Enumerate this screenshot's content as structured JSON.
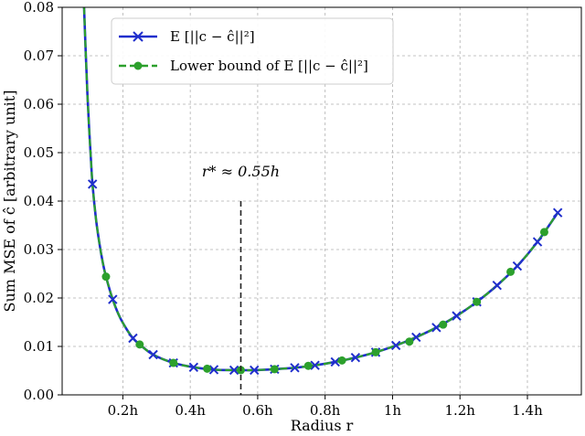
{
  "chart_data": {
    "type": "line",
    "xlabel": "Radius r",
    "ylabel": "Sum MSE of ĉ [arbitrary unit]",
    "xlim": [
      0.02,
      1.56
    ],
    "ylim": [
      0,
      0.08
    ],
    "grid": true,
    "legend_placement": "top-left",
    "x_ticks": [
      0.2,
      0.4,
      0.6,
      0.8,
      1.0,
      1.2,
      1.4
    ],
    "x_tick_labels": [
      "0.2h",
      "0.4h",
      "0.6h",
      "0.8h",
      "1h",
      "1.2h",
      "1.4h"
    ],
    "y_ticks": [
      0,
      0.01,
      0.02,
      0.03,
      0.04,
      0.05,
      0.06,
      0.07,
      0.08
    ],
    "y_tick_labels": [
      "0.00",
      "0.01",
      "0.02",
      "0.03",
      "0.04",
      "0.05",
      "0.06",
      "0.07",
      "0.08"
    ],
    "annotation": {
      "text": "r* ≈ 0.55h",
      "x": 0.55,
      "y_top": 0.04
    },
    "series": [
      {
        "name": "E [||c − ĉ||²]",
        "color": "#1f2ecc",
        "style": "solid",
        "marker": "x",
        "x": [
          0.11,
          0.17,
          0.23,
          0.29,
          0.35,
          0.41,
          0.47,
          0.53,
          0.59,
          0.65,
          0.71,
          0.77,
          0.83,
          0.89,
          0.95,
          1.01,
          1.07,
          1.13,
          1.19,
          1.25,
          1.31,
          1.37,
          1.43,
          1.49
        ],
        "values": [
          0.0435,
          0.0197,
          0.0117,
          0.0083,
          0.0066,
          0.0057,
          0.0052,
          0.0051,
          0.0051,
          0.0053,
          0.0056,
          0.0061,
          0.0068,
          0.0077,
          0.0088,
          0.0102,
          0.0119,
          0.0139,
          0.0163,
          0.0192,
          0.0226,
          0.0266,
          0.0316,
          0.0376
        ]
      },
      {
        "name": "Lower bound of E [||c − ĉ||²]",
        "color": "#2ca02c",
        "style": "dashed",
        "marker": "o",
        "x": [
          0.15,
          0.25,
          0.35,
          0.45,
          0.55,
          0.65,
          0.75,
          0.85,
          0.95,
          1.05,
          1.15,
          1.25,
          1.35,
          1.45
        ],
        "values": [
          0.0244,
          0.0104,
          0.0066,
          0.0054,
          0.0051,
          0.0053,
          0.006,
          0.0071,
          0.0088,
          0.011,
          0.0145,
          0.0192,
          0.0254,
          0.0336
        ]
      }
    ],
    "curve": {
      "x": [
        0.085,
        0.09,
        0.095,
        0.1,
        0.105,
        0.11,
        0.12,
        0.13,
        0.14,
        0.15,
        0.17,
        0.19,
        0.21,
        0.23,
        0.25,
        0.29,
        0.35,
        0.41,
        0.47,
        0.53,
        0.55,
        0.59,
        0.65,
        0.71,
        0.77,
        0.83,
        0.89,
        0.95,
        1.01,
        1.07,
        1.13,
        1.19,
        1.25,
        1.31,
        1.37,
        1.43,
        1.49
      ],
      "values": [
        0.08,
        0.0705,
        0.062,
        0.055,
        0.049,
        0.0435,
        0.0365,
        0.0315,
        0.0275,
        0.0244,
        0.0197,
        0.0162,
        0.0137,
        0.0117,
        0.0104,
        0.0083,
        0.0066,
        0.0057,
        0.0052,
        0.0051,
        0.0051,
        0.0051,
        0.0053,
        0.0056,
        0.0061,
        0.0068,
        0.0077,
        0.0088,
        0.0102,
        0.0119,
        0.0139,
        0.0163,
        0.0192,
        0.0226,
        0.0266,
        0.0316,
        0.0376
      ]
    }
  }
}
